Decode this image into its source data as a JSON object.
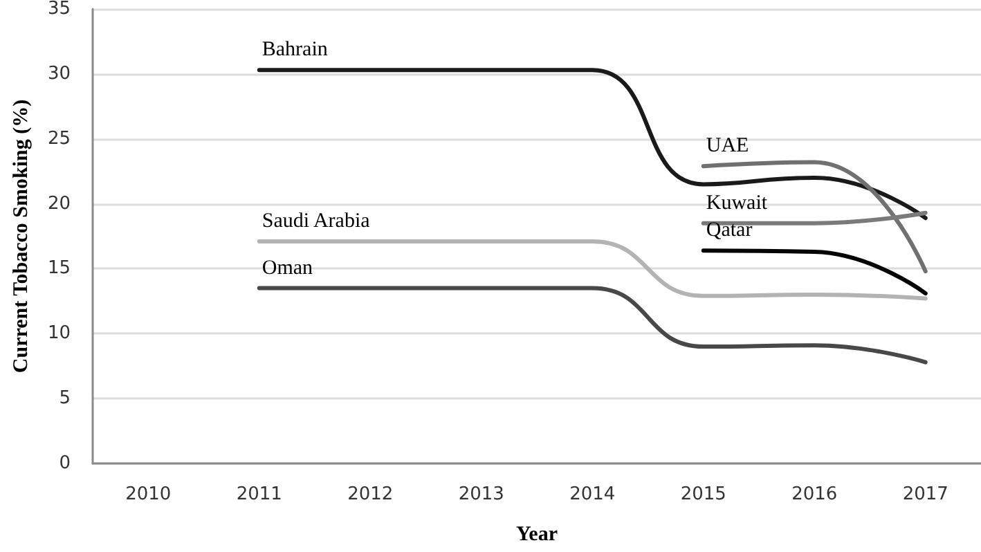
{
  "chart_data": {
    "type": "line",
    "xlabel": "Year",
    "ylabel": "Current Tobacco Smoking (%)",
    "categories": [
      "2010",
      "2011",
      "2012",
      "2013",
      "2014",
      "2015",
      "2016",
      "2017"
    ],
    "series": [
      {
        "name": "Bahrain",
        "color": "#1a1a1a",
        "values": [
          null,
          30.3,
          30.3,
          30.3,
          30.3,
          21.5,
          22.0,
          18.9
        ]
      },
      {
        "name": "Saudi Arabia",
        "color": "#b3b3b3",
        "values": [
          null,
          17.1,
          17.1,
          17.1,
          17.1,
          12.9,
          13.0,
          12.7
        ]
      },
      {
        "name": "Oman",
        "color": "#484848",
        "values": [
          null,
          13.5,
          13.5,
          13.5,
          13.5,
          9.0,
          9.1,
          7.8
        ]
      },
      {
        "name": "UAE",
        "color": "#707070",
        "values": [
          null,
          null,
          null,
          null,
          null,
          22.9,
          23.2,
          14.8
        ]
      },
      {
        "name": "Kuwait",
        "color": "#7a7a7a",
        "values": [
          null,
          null,
          null,
          null,
          null,
          18.5,
          18.5,
          19.3
        ]
      },
      {
        "name": "Qatar",
        "color": "#050505",
        "values": [
          null,
          null,
          null,
          null,
          null,
          16.4,
          16.3,
          13.1
        ]
      }
    ],
    "ylim": [
      0,
      35
    ],
    "yticks": [
      0,
      5,
      10,
      15,
      20,
      25,
      30,
      35
    ],
    "grid": "y",
    "legend": false,
    "marker": "none",
    "line_style": "solid"
  }
}
